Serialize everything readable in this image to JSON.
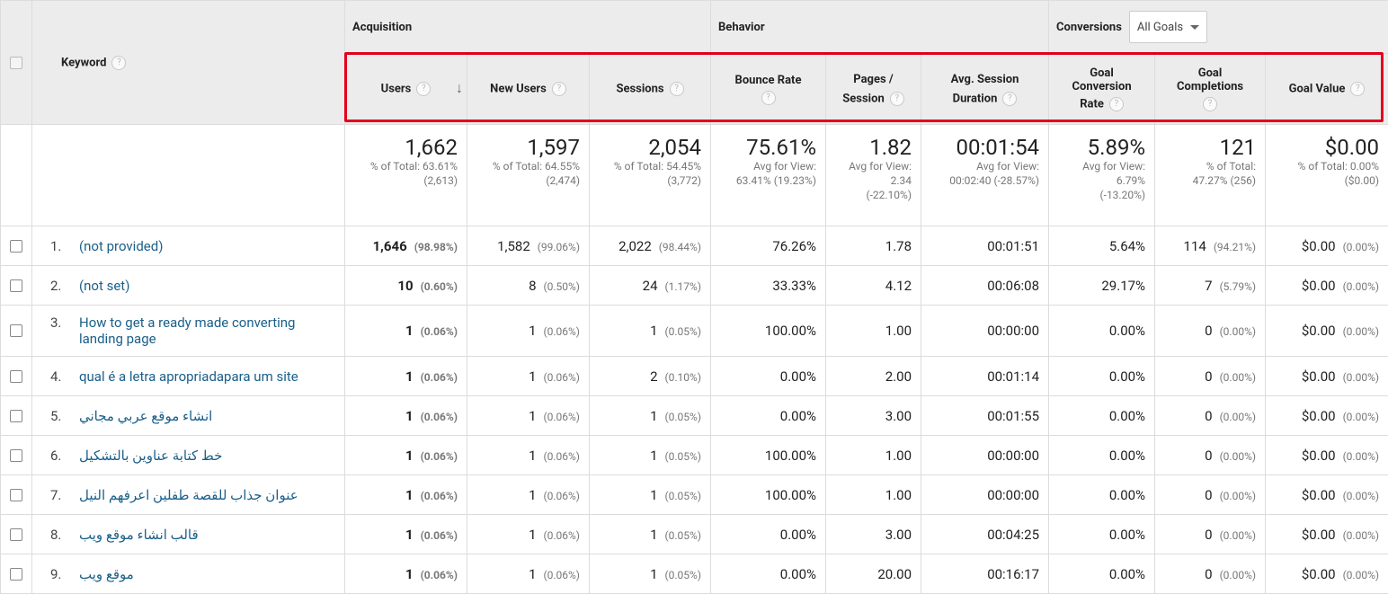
{
  "header": {
    "keyword": "Keyword",
    "groups": {
      "acquisition": "Acquisition",
      "behavior": "Behavior",
      "conversions": "Conversions"
    },
    "goal_select": "All Goals",
    "columns": {
      "users": "Users",
      "new_users": "New Users",
      "sessions": "Sessions",
      "bounce_rate": "Bounce Rate",
      "pages_l1": "Pages /",
      "pages_l2": "Session",
      "avg_l1": "Avg. Session",
      "avg_l2": "Duration",
      "gcr_l1": "Goal",
      "gcr_l2": "Conversion",
      "gcr_l3": "Rate",
      "gc_l1": "Goal",
      "gc_l2": "Completions",
      "goal_value": "Goal Value"
    },
    "help": "?"
  },
  "totals": {
    "users": {
      "value": "1,662",
      "l1": "% of Total: 63.61%",
      "l2": "(2,613)"
    },
    "new_users": {
      "value": "1,597",
      "l1": "% of Total: 64.55%",
      "l2": "(2,474)"
    },
    "sessions": {
      "value": "2,054",
      "l1": "% of Total: 54.45%",
      "l2": "(3,772)"
    },
    "bounce_rate": {
      "value": "75.61%",
      "l1": "Avg for View:",
      "l2": "63.41% (19.23%)"
    },
    "pages": {
      "value": "1.82",
      "l1": "Avg for View:",
      "l2": "2.34",
      "l3": "(-22.10%)"
    },
    "avg_dur": {
      "value": "00:01:54",
      "l1": "Avg for View:",
      "l2": "00:02:40 (-28.57%)"
    },
    "gcr": {
      "value": "5.89%",
      "l1": "Avg for View:",
      "l2": "6.79%",
      "l3": "(-13.20%)"
    },
    "gc": {
      "value": "121",
      "l1": "% of Total:",
      "l2": "47.27% (256)"
    },
    "gv": {
      "value": "$0.00",
      "l1": "% of Total: 0.00%",
      "l2": "($0.00)"
    }
  },
  "rows": [
    {
      "idx": "1.",
      "kw": "(not provided)",
      "users": "1,646",
      "users_pct": "(98.98%)",
      "new_users": "1,582",
      "new_users_pct": "(99.06%)",
      "sessions": "2,022",
      "sessions_pct": "(98.44%)",
      "bounce": "76.26%",
      "pages": "1.78",
      "dur": "00:01:51",
      "gcr": "5.64%",
      "gc": "114",
      "gc_pct": "(94.21%)",
      "gv": "$0.00",
      "gv_pct": "(0.00%)"
    },
    {
      "idx": "2.",
      "kw": "(not set)",
      "users": "10",
      "users_pct": "(0.60%)",
      "new_users": "8",
      "new_users_pct": "(0.50%)",
      "sessions": "24",
      "sessions_pct": "(1.17%)",
      "bounce": "33.33%",
      "pages": "4.12",
      "dur": "00:06:08",
      "gcr": "29.17%",
      "gc": "7",
      "gc_pct": "(5.79%)",
      "gv": "$0.00",
      "gv_pct": "(0.00%)"
    },
    {
      "idx": "3.",
      "kw": "How to get a ready made converting landing page",
      "users": "1",
      "users_pct": "(0.06%)",
      "new_users": "1",
      "new_users_pct": "(0.06%)",
      "sessions": "1",
      "sessions_pct": "(0.05%)",
      "bounce": "100.00%",
      "pages": "1.00",
      "dur": "00:00:00",
      "gcr": "0.00%",
      "gc": "0",
      "gc_pct": "(0.00%)",
      "gv": "$0.00",
      "gv_pct": "(0.00%)"
    },
    {
      "idx": "4.",
      "kw": "qual é a letra apropriadapara um site",
      "users": "1",
      "users_pct": "(0.06%)",
      "new_users": "1",
      "new_users_pct": "(0.06%)",
      "sessions": "2",
      "sessions_pct": "(0.10%)",
      "bounce": "0.00%",
      "pages": "2.00",
      "dur": "00:01:14",
      "gcr": "0.00%",
      "gc": "0",
      "gc_pct": "(0.00%)",
      "gv": "$0.00",
      "gv_pct": "(0.00%)"
    },
    {
      "idx": "5.",
      "kw": "انشاء موقع عربي مجاني",
      "users": "1",
      "users_pct": "(0.06%)",
      "new_users": "1",
      "new_users_pct": "(0.06%)",
      "sessions": "1",
      "sessions_pct": "(0.05%)",
      "bounce": "0.00%",
      "pages": "3.00",
      "dur": "00:01:55",
      "gcr": "0.00%",
      "gc": "0",
      "gc_pct": "(0.00%)",
      "gv": "$0.00",
      "gv_pct": "(0.00%)"
    },
    {
      "idx": "6.",
      "kw": "خط كتابة عناوين بالتشكيل",
      "users": "1",
      "users_pct": "(0.06%)",
      "new_users": "1",
      "new_users_pct": "(0.06%)",
      "sessions": "1",
      "sessions_pct": "(0.05%)",
      "bounce": "100.00%",
      "pages": "1.00",
      "dur": "00:00:00",
      "gcr": "0.00%",
      "gc": "0",
      "gc_pct": "(0.00%)",
      "gv": "$0.00",
      "gv_pct": "(0.00%)"
    },
    {
      "idx": "7.",
      "kw": "عنوان جذاب للقصة طفلين اعرفهم النيل",
      "users": "1",
      "users_pct": "(0.06%)",
      "new_users": "1",
      "new_users_pct": "(0.06%)",
      "sessions": "1",
      "sessions_pct": "(0.05%)",
      "bounce": "100.00%",
      "pages": "1.00",
      "dur": "00:00:00",
      "gcr": "0.00%",
      "gc": "0",
      "gc_pct": "(0.00%)",
      "gv": "$0.00",
      "gv_pct": "(0.00%)"
    },
    {
      "idx": "8.",
      "kw": "قالب انشاء موقع ويب",
      "users": "1",
      "users_pct": "(0.06%)",
      "new_users": "1",
      "new_users_pct": "(0.06%)",
      "sessions": "1",
      "sessions_pct": "(0.05%)",
      "bounce": "0.00%",
      "pages": "3.00",
      "dur": "00:04:25",
      "gcr": "0.00%",
      "gc": "0",
      "gc_pct": "(0.00%)",
      "gv": "$0.00",
      "gv_pct": "(0.00%)"
    },
    {
      "idx": "9.",
      "kw": "موقع ويب",
      "users": "1",
      "users_pct": "(0.06%)",
      "new_users": "1",
      "new_users_pct": "(0.06%)",
      "sessions": "1",
      "sessions_pct": "(0.05%)",
      "bounce": "0.00%",
      "pages": "20.00",
      "dur": "00:16:17",
      "gcr": "0.00%",
      "gc": "0",
      "gc_pct": "(0.00%)",
      "gv": "$0.00",
      "gv_pct": "(0.00%)"
    }
  ]
}
